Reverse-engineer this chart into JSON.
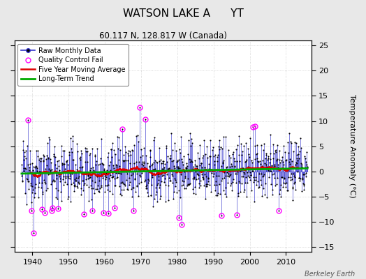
{
  "title": "WATSON LAKE A      YT",
  "subtitle": "60.117 N, 128.817 W (Canada)",
  "ylabel": "Temperature Anomaly (°C)",
  "credit": "Berkeley Earth",
  "ylim": [
    -16,
    26
  ],
  "yticks": [
    -15,
    -10,
    -5,
    0,
    5,
    10,
    15,
    20,
    25
  ],
  "year_start": 1937,
  "year_end": 2015,
  "xlim": [
    1935,
    2017
  ],
  "xticks": [
    1940,
    1950,
    1960,
    1970,
    1980,
    1990,
    2000,
    2010
  ],
  "bg_color": "#e8e8e8",
  "plot_bg_color": "#ffffff",
  "line_color": "#3333cc",
  "dot_color": "#000000",
  "ma_color": "#dd0000",
  "trend_color": "#00aa00",
  "qc_color": "#ff00ff",
  "seed": 12345
}
